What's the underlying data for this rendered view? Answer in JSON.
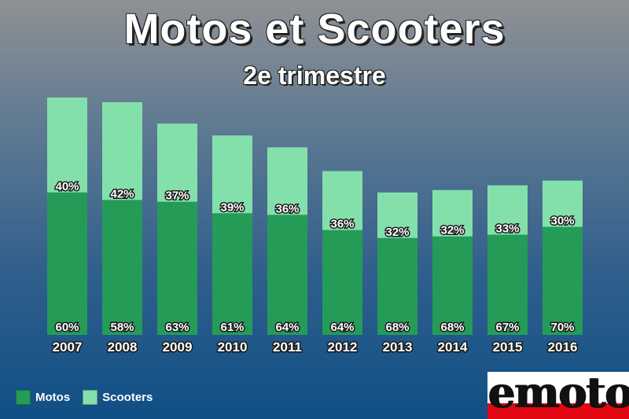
{
  "chart_data": {
    "type": "bar",
    "stacked": true,
    "title": "Motos et Scooters",
    "subtitle": "2e trimestre",
    "categories": [
      "2007",
      "2008",
      "2009",
      "2010",
      "2011",
      "2012",
      "2013",
      "2014",
      "2015",
      "2016"
    ],
    "totals_relative": [
      1.0,
      0.98,
      0.89,
      0.84,
      0.79,
      0.69,
      0.6,
      0.61,
      0.63,
      0.65
    ],
    "series": [
      {
        "name": "Motos",
        "color": "#259b58",
        "values": [
          60,
          58,
          63,
          61,
          64,
          64,
          68,
          68,
          67,
          70
        ],
        "labels": [
          "60%",
          "58%",
          "63%",
          "61%",
          "64%",
          "64%",
          "68%",
          "68%",
          "67%",
          "70%"
        ]
      },
      {
        "name": "Scooters",
        "color": "#84e0ab",
        "values": [
          40,
          42,
          37,
          39,
          36,
          36,
          32,
          32,
          33,
          30
        ],
        "labels": [
          "40%",
          "42%",
          "37%",
          "39%",
          "36%",
          "36%",
          "32%",
          "32%",
          "33%",
          "30%"
        ]
      }
    ],
    "legend_position": "bottom-left",
    "grid": false
  },
  "brand": {
    "logo_text": "emoto",
    "accent": "#e30613"
  }
}
